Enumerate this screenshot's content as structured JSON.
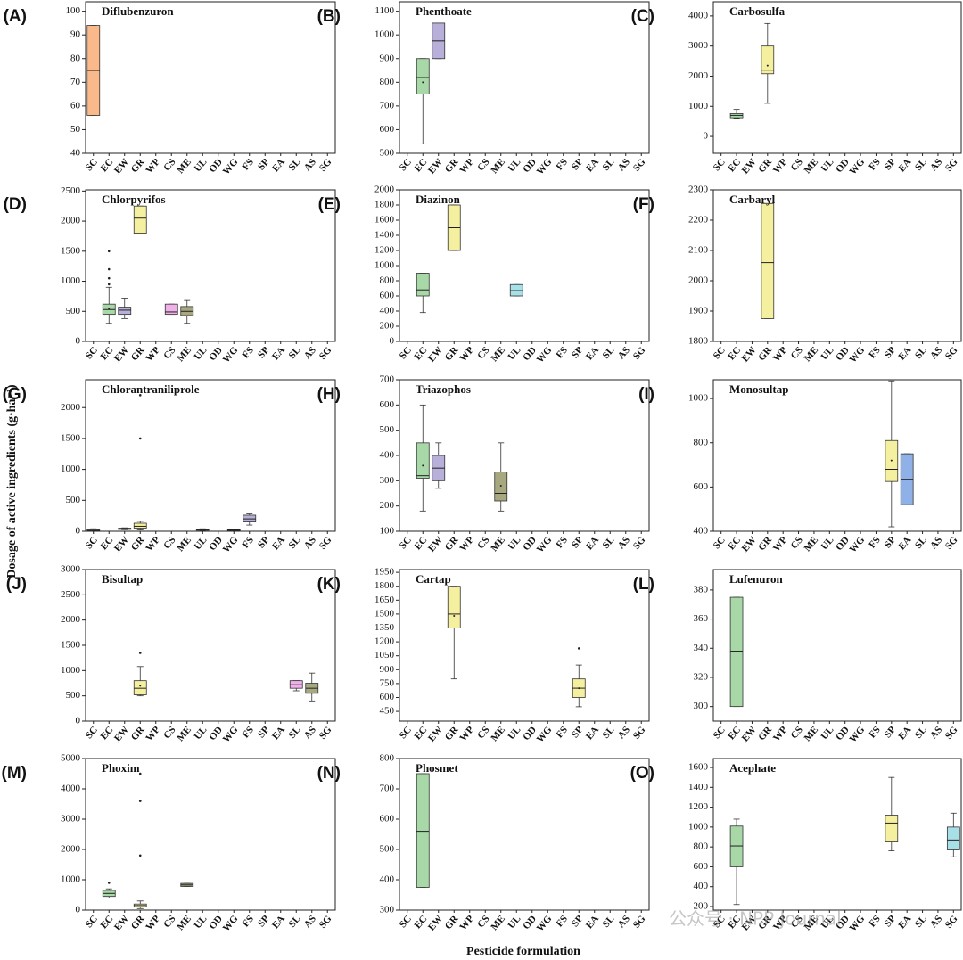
{
  "y_label": "Dosage of active ingredients (g·ha⁻¹)",
  "x_label": "Pesticide formulation",
  "watermark": "公众号 · NPP Journal",
  "chart_data": [
    {
      "type": "box",
      "panel_label": "(A)",
      "title": "Diflubenzuron",
      "categories": [
        "SC",
        "EC",
        "EW",
        "GR",
        "WP",
        "CS",
        "ME",
        "UL",
        "OD",
        "WG",
        "FS",
        "SP",
        "EA",
        "SL",
        "AS",
        "SG"
      ],
      "ylim": [
        40,
        104
      ],
      "yticks": [
        40,
        50,
        60,
        70,
        80,
        90,
        100
      ],
      "boxes": [
        {
          "color": "#f9b98a",
          "whislo": 56,
          "q1": 56,
          "med": 75,
          "q3": 94,
          "whishi": 94
        },
        null,
        null,
        null,
        null,
        null,
        null,
        null,
        null,
        null,
        null,
        null,
        null,
        null,
        null,
        null
      ]
    },
    {
      "type": "box",
      "panel_label": "(B)",
      "title": "Phenthoate",
      "categories": [
        "SC",
        "EC",
        "EW",
        "GR",
        "WP",
        "CS",
        "ME",
        "UL",
        "OD",
        "WG",
        "FS",
        "SP",
        "EA",
        "SL",
        "AS",
        "SG"
      ],
      "ylim": [
        500,
        1140
      ],
      "yticks": [
        500,
        600,
        700,
        800,
        900,
        1000,
        1100
      ],
      "boxes": [
        null,
        {
          "color": "#a8d8a8",
          "whislo": 540,
          "q1": 750,
          "med": 820,
          "q3": 900,
          "whishi": 900,
          "mean": 800
        },
        {
          "color": "#b8b0d8",
          "whislo": 900,
          "q1": 900,
          "med": 975,
          "q3": 1050,
          "whishi": 1050
        },
        null,
        null,
        null,
        null,
        null,
        null,
        null,
        null,
        null,
        null,
        null,
        null,
        null
      ]
    },
    {
      "type": "box",
      "panel_label": "(C)",
      "title": "Carbosulfa",
      "categories": [
        "SC",
        "EC",
        "EW",
        "GR",
        "WP",
        "CS",
        "ME",
        "UL",
        "OD",
        "WG",
        "FS",
        "SP",
        "EA",
        "SL",
        "AS",
        "SG"
      ],
      "ylim": [
        -560,
        4470
      ],
      "yticks": [
        0,
        1000,
        2000,
        3000,
        4000
      ],
      "boxes": [
        null,
        {
          "color": "#a8d8a8",
          "whislo": 600,
          "q1": 620,
          "med": 700,
          "q3": 760,
          "whishi": 900
        },
        null,
        {
          "color": "#f5f0a0",
          "whislo": 1100,
          "q1": 2080,
          "med": 2200,
          "q3": 3000,
          "whishi": 3750,
          "mean": 2350
        },
        null,
        null,
        null,
        null,
        null,
        null,
        null,
        null,
        null,
        null,
        null,
        null
      ]
    },
    {
      "type": "box",
      "panel_label": "(D)",
      "title": "Chlorpyrifos",
      "categories": [
        "SC",
        "EC",
        "EW",
        "GR",
        "WP",
        "CS",
        "ME",
        "UL",
        "OD",
        "WG",
        "FS",
        "SP",
        "EA",
        "SL",
        "AS",
        "SG"
      ],
      "ylim": [
        0,
        2520
      ],
      "yticks": [
        0,
        500,
        1000,
        1500,
        2000,
        2500
      ],
      "boxes": [
        null,
        {
          "color": "#a8d8a8",
          "whislo": 300,
          "q1": 450,
          "med": 530,
          "q3": 620,
          "whishi": 900,
          "mean": 540,
          "fliers": [
            950,
            1050,
            1200,
            1500
          ]
        },
        {
          "color": "#b8b0d8",
          "whislo": 380,
          "q1": 450,
          "med": 520,
          "q3": 570,
          "whishi": 720
        },
        {
          "color": "#f5f0a0",
          "whislo": 1800,
          "q1": 1800,
          "med": 2050,
          "q3": 2250,
          "whishi": 2250
        },
        null,
        {
          "color": "#f0b0e8",
          "whislo": 450,
          "q1": 450,
          "med": 490,
          "q3": 620,
          "whishi": 620
        },
        {
          "color": "#a8a880",
          "whislo": 300,
          "q1": 430,
          "med": 500,
          "q3": 580,
          "whishi": 680
        },
        null,
        null,
        null,
        null,
        null,
        null,
        null,
        null,
        null
      ]
    },
    {
      "type": "box",
      "panel_label": "(E)",
      "title": "Diazinon",
      "categories": [
        "SC",
        "EC",
        "EW",
        "GR",
        "WP",
        "CS",
        "ME",
        "UL",
        "OD",
        "WG",
        "FS",
        "SP",
        "EA",
        "SL",
        "AS",
        "SG"
      ],
      "ylim": [
        0,
        2000
      ],
      "yticks": [
        0,
        200,
        400,
        600,
        800,
        1000,
        1200,
        1400,
        1600,
        1800,
        2000
      ],
      "boxes": [
        null,
        {
          "color": "#a8d8a8",
          "whislo": 380,
          "q1": 600,
          "med": 680,
          "q3": 900,
          "whishi": 900
        },
        null,
        {
          "color": "#f5f0a0",
          "whislo": 1200,
          "q1": 1200,
          "med": 1500,
          "q3": 1800,
          "whishi": 1800
        },
        null,
        null,
        null,
        {
          "color": "#a8e0e8",
          "whislo": 600,
          "q1": 600,
          "med": 670,
          "q3": 750,
          "whishi": 750
        },
        null,
        null,
        null,
        null,
        null,
        null,
        null,
        null
      ]
    },
    {
      "type": "box",
      "panel_label": "(F)",
      "title": "Carbaryl",
      "categories": [
        "SC",
        "EC",
        "EW",
        "GR",
        "WP",
        "CS",
        "ME",
        "UL",
        "OD",
        "WG",
        "FS",
        "SP",
        "EA",
        "SL",
        "AS",
        "SG"
      ],
      "ylim": [
        1800,
        2300
      ],
      "yticks": [
        1800,
        1900,
        2000,
        2100,
        2200,
        2300
      ],
      "boxes": [
        null,
        null,
        null,
        {
          "color": "#f5f0a0",
          "whislo": 1875,
          "q1": 1875,
          "med": 2060,
          "q3": 2255,
          "whishi": 2255
        },
        null,
        null,
        null,
        null,
        null,
        null,
        null,
        null,
        null,
        null,
        null,
        null
      ]
    },
    {
      "type": "box",
      "panel_label": "(G)",
      "title": "Chlorantraniliprole",
      "categories": [
        "SC",
        "EC",
        "EW",
        "GR",
        "WP",
        "CS",
        "ME",
        "UL",
        "OD",
        "WG",
        "FS",
        "SP",
        "EA",
        "SL",
        "AS",
        "SG"
      ],
      "ylim": [
        0,
        2450
      ],
      "yticks": [
        0,
        500,
        1000,
        1500,
        2000
      ],
      "boxes": [
        {
          "color": "#a8d8a8",
          "whislo": 0,
          "q1": 5,
          "med": 15,
          "q3": 30,
          "whishi": 40
        },
        null,
        {
          "color": "#b8b0d8",
          "whislo": 25,
          "q1": 30,
          "med": 40,
          "q3": 50,
          "whishi": 55
        },
        {
          "color": "#f5f0a0",
          "whislo": 20,
          "q1": 50,
          "med": 80,
          "q3": 130,
          "whishi": 160,
          "fliers": [
            1500,
            2200
          ]
        },
        null,
        null,
        null,
        {
          "color": "#c8c8c8",
          "whislo": 10,
          "q1": 15,
          "med": 25,
          "q3": 35,
          "whishi": 40
        },
        null,
        {
          "color": "#c8c8c8",
          "whislo": 10,
          "q1": 10,
          "med": 20,
          "q3": 25,
          "whishi": 25
        },
        {
          "color": "#b8b0d8",
          "whislo": 100,
          "q1": 150,
          "med": 200,
          "q3": 260,
          "whishi": 280
        },
        null,
        null,
        null,
        null,
        null
      ]
    },
    {
      "type": "box",
      "panel_label": "(H)",
      "title": "Triazophos",
      "categories": [
        "SC",
        "EC",
        "EW",
        "GR",
        "WP",
        "CS",
        "ME",
        "UL",
        "OD",
        "WG",
        "FS",
        "SP",
        "EA",
        "SL",
        "AS",
        "SG"
      ],
      "ylim": [
        100,
        700
      ],
      "yticks": [
        100,
        200,
        300,
        400,
        500,
        600,
        700
      ],
      "boxes": [
        null,
        {
          "color": "#a8d8a8",
          "whislo": 180,
          "q1": 310,
          "med": 320,
          "q3": 450,
          "whishi": 600,
          "mean": 360
        },
        {
          "color": "#b8b0d8",
          "whislo": 270,
          "q1": 300,
          "med": 350,
          "q3": 400,
          "whishi": 450
        },
        null,
        null,
        null,
        {
          "color": "#a8a880",
          "whislo": 180,
          "q1": 220,
          "med": 250,
          "q3": 335,
          "whishi": 450,
          "mean": 280
        },
        null,
        null,
        null,
        null,
        null,
        null,
        null,
        null,
        null
      ]
    },
    {
      "type": "box",
      "panel_label": "(I)",
      "title": "Monosultap",
      "categories": [
        "SC",
        "EC",
        "EW",
        "GR",
        "WP",
        "CS",
        "ME",
        "UL",
        "OD",
        "WG",
        "FS",
        "SP",
        "EA",
        "SL",
        "AS",
        "SG"
      ],
      "ylim": [
        400,
        1085
      ],
      "yticks": [
        400,
        600,
        800,
        1000
      ],
      "boxes": [
        null,
        null,
        null,
        null,
        null,
        null,
        null,
        null,
        null,
        null,
        null,
        {
          "color": "#f5f0a0",
          "whislo": 420,
          "q1": 625,
          "med": 680,
          "q3": 810,
          "whishi": 1080,
          "mean": 720
        },
        {
          "color": "#90b0e8",
          "whislo": 520,
          "q1": 520,
          "med": 635,
          "q3": 750,
          "whishi": 750
        },
        null,
        null,
        null
      ]
    },
    {
      "type": "box",
      "panel_label": "(J)",
      "title": "Bisultap",
      "categories": [
        "SC",
        "EC",
        "EW",
        "GR",
        "WP",
        "CS",
        "ME",
        "UL",
        "OD",
        "WG",
        "FS",
        "SP",
        "EA",
        "SL",
        "AS",
        "SG"
      ],
      "ylim": [
        0,
        3000
      ],
      "yticks": [
        0,
        500,
        1000,
        1500,
        2000,
        2500,
        3000
      ],
      "boxes": [
        null,
        null,
        null,
        {
          "color": "#f5f0a0",
          "whislo": 500,
          "q1": 520,
          "med": 650,
          "q3": 800,
          "whishi": 1080,
          "mean": 700,
          "fliers": [
            1350
          ]
        },
        null,
        null,
        null,
        null,
        null,
        null,
        null,
        null,
        null,
        {
          "color": "#f0b0e8",
          "whislo": 600,
          "q1": 650,
          "med": 720,
          "q3": 800,
          "whishi": 800
        },
        {
          "color": "#a8a880",
          "whislo": 400,
          "q1": 550,
          "med": 650,
          "q3": 750,
          "whishi": 950
        },
        null
      ]
    },
    {
      "type": "box",
      "panel_label": "(K)",
      "title": "Cartap",
      "categories": [
        "SC",
        "EC",
        "EW",
        "GR",
        "WP",
        "CS",
        "ME",
        "UL",
        "OD",
        "WG",
        "FS",
        "SP",
        "EA",
        "SL",
        "AS",
        "SG"
      ],
      "ylim": [
        345,
        1980
      ],
      "yticks": [
        450,
        600,
        750,
        900,
        1050,
        1200,
        1350,
        1500,
        1650,
        1800,
        1950
      ],
      "boxes": [
        null,
        null,
        null,
        {
          "color": "#f5f0a0",
          "whislo": 800,
          "q1": 1350,
          "med": 1500,
          "q3": 1800,
          "whishi": 1800,
          "mean": 1480
        },
        null,
        null,
        null,
        null,
        null,
        null,
        null,
        {
          "color": "#f5f0a0",
          "whislo": 500,
          "q1": 600,
          "med": 700,
          "q3": 800,
          "whishi": 950,
          "mean": 700,
          "fliers": [
            1130
          ]
        },
        null,
        null,
        null,
        null
      ]
    },
    {
      "type": "box",
      "panel_label": "(L)",
      "title": "Lufenuron",
      "categories": [
        "SC",
        "EC",
        "EW",
        "GR",
        "WP",
        "CS",
        "ME",
        "UL",
        "OD",
        "WG",
        "FS",
        "SP",
        "EA",
        "SL",
        "AS",
        "SG"
      ],
      "ylim": [
        290,
        394
      ],
      "yticks": [
        300,
        320,
        340,
        360,
        380
      ],
      "boxes": [
        null,
        {
          "color": "#a8d8a8",
          "whislo": 300,
          "q1": 300,
          "med": 338,
          "q3": 375,
          "whishi": 375
        },
        null,
        null,
        null,
        null,
        null,
        null,
        null,
        null,
        null,
        null,
        null,
        null,
        null,
        null
      ]
    },
    {
      "type": "box",
      "panel_label": "(M)",
      "title": "Phoxim",
      "categories": [
        "SC",
        "EC",
        "EW",
        "GR",
        "WP",
        "CS",
        "ME",
        "UL",
        "OD",
        "WG",
        "FS",
        "SP",
        "EA",
        "SL",
        "AS",
        "SG"
      ],
      "ylim": [
        0,
        5000
      ],
      "yticks": [
        0,
        1000,
        2000,
        3000,
        4000,
        5000
      ],
      "boxes": [
        null,
        {
          "color": "#a8d8a8",
          "whislo": 400,
          "q1": 450,
          "med": 550,
          "q3": 650,
          "whishi": 700,
          "fliers": [
            900
          ]
        },
        null,
        {
          "color": "#f5f0a0",
          "whislo": 50,
          "q1": 100,
          "med": 150,
          "q3": 200,
          "whishi": 300,
          "fliers": [
            1800,
            3600,
            4500
          ]
        },
        null,
        null,
        {
          "color": "#a8a880",
          "whislo": 780,
          "q1": 780,
          "med": 830,
          "q3": 880,
          "whishi": 880
        },
        null,
        null,
        null,
        null,
        null,
        null,
        null,
        null,
        null
      ]
    },
    {
      "type": "box",
      "panel_label": "(N)",
      "title": "Phosmet",
      "categories": [
        "SC",
        "EC",
        "EW",
        "GR",
        "WP",
        "CS",
        "ME",
        "UL",
        "OD",
        "WG",
        "FS",
        "SP",
        "EA",
        "SL",
        "AS",
        "SG"
      ],
      "ylim": [
        300,
        800
      ],
      "yticks": [
        300,
        400,
        500,
        600,
        700,
        800
      ],
      "boxes": [
        null,
        {
          "color": "#a8d8a8",
          "whislo": 375,
          "q1": 375,
          "med": 560,
          "q3": 750,
          "whishi": 750
        },
        null,
        null,
        null,
        null,
        null,
        null,
        null,
        null,
        null,
        null,
        null,
        null,
        null,
        null
      ]
    },
    {
      "type": "box",
      "panel_label": "(O)",
      "title": "Acephate",
      "categories": [
        "SC",
        "EC",
        "EW",
        "GR",
        "WP",
        "CS",
        "ME",
        "UL",
        "OD",
        "WG",
        "FS",
        "SP",
        "EA",
        "SL",
        "AS",
        "SG"
      ],
      "ylim": [
        164,
        1690
      ],
      "yticks": [
        200,
        400,
        600,
        800,
        1000,
        1200,
        1400,
        1600
      ],
      "boxes": [
        null,
        {
          "color": "#a8d8a8",
          "whislo": 220,
          "q1": 600,
          "med": 810,
          "q3": 1010,
          "whishi": 1080
        },
        null,
        null,
        null,
        null,
        null,
        null,
        null,
        null,
        null,
        {
          "color": "#f5f0a0",
          "whislo": 760,
          "q1": 850,
          "med": 1040,
          "q3": 1120,
          "whishi": 1500
        },
        null,
        null,
        null,
        {
          "color": "#a8e0e8",
          "whislo": 700,
          "q1": 770,
          "med": 870,
          "q3": 1000,
          "whishi": 1140
        }
      ]
    }
  ]
}
